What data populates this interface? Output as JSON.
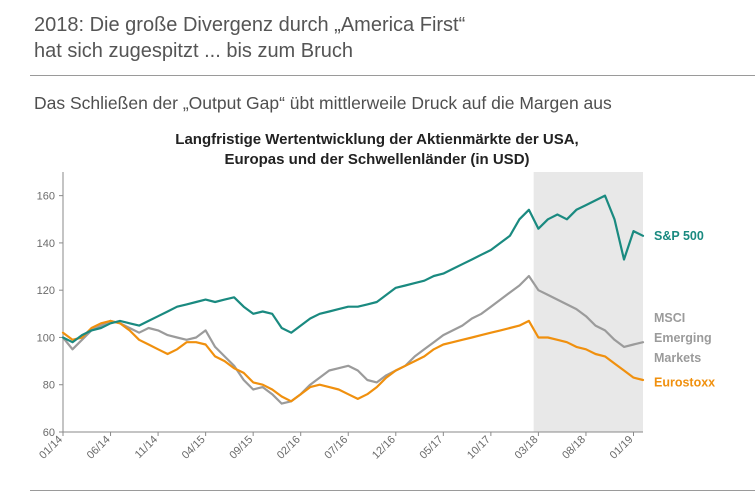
{
  "header": {
    "headline_line1": "2018: Die große Divergenz durch „America First“",
    "headline_line2": "hat sich zugespitzt ... bis zum Bruch",
    "subheadline": "Das Schließen der „Output Gap“ übt mittlerweile Druck auf die Margen aus"
  },
  "colors": {
    "sp500": "#1a8a80",
    "msci": "#9b9b9b",
    "eurostoxx": "#f0900e",
    "shade": "#e8e8e8",
    "axis": "#8a8a8a"
  },
  "chart_data": {
    "type": "line",
    "title": "Langfristige Wertentwicklung der Aktienmärkte der USA, Europas und der Schwellenländer (in USD)",
    "title_lines": [
      "Langfristige Wertentwicklung der Aktienmärkte der USA,",
      "Europas und der Schwellenländer (in USD)"
    ],
    "xlabel": "",
    "ylabel": "",
    "ylim": [
      60,
      170
    ],
    "yticks": [
      60,
      80,
      100,
      120,
      140,
      160
    ],
    "xlim": [
      0,
      61
    ],
    "x_tick_labels": [
      "01/14",
      "06/14",
      "11/14",
      "04/15",
      "09/15",
      "02/16",
      "07/16",
      "12/16",
      "05/17",
      "10/17",
      "03/18",
      "08/18",
      "01/19"
    ],
    "x_tick_positions": [
      0,
      5,
      10,
      15,
      20,
      25,
      30,
      35,
      40,
      45,
      50,
      55,
      60
    ],
    "shaded_region": [
      49.5,
      61
    ],
    "x": [
      0,
      1,
      2,
      3,
      4,
      5,
      6,
      7,
      8,
      9,
      10,
      11,
      12,
      13,
      14,
      15,
      16,
      17,
      18,
      19,
      20,
      21,
      22,
      23,
      24,
      25,
      26,
      27,
      28,
      29,
      30,
      31,
      32,
      33,
      34,
      35,
      36,
      37,
      38,
      39,
      40,
      41,
      42,
      43,
      44,
      45,
      46,
      47,
      48,
      49,
      50,
      51,
      52,
      53,
      54,
      55,
      56,
      57,
      58,
      59,
      60,
      61
    ],
    "series": [
      {
        "name": "S&P 500",
        "label_lines": [
          "S&P 500"
        ],
        "values": [
          100,
          98,
          101,
          103,
          104,
          106,
          107,
          106,
          105,
          107,
          109,
          111,
          113,
          114,
          115,
          116,
          115,
          116,
          117,
          113,
          110,
          111,
          110,
          104,
          102,
          105,
          108,
          110,
          111,
          112,
          113,
          113,
          114,
          115,
          118,
          121,
          122,
          123,
          124,
          126,
          127,
          129,
          131,
          133,
          135,
          137,
          140,
          143,
          150,
          154,
          146,
          150,
          152,
          150,
          154,
          156,
          158,
          160,
          150,
          133,
          145,
          143
        ]
      },
      {
        "name": "MSCI Emerging Markets",
        "label_lines": [
          "MSCI",
          "Emerging",
          "Markets"
        ],
        "values": [
          100,
          95,
          99,
          103,
          105,
          107,
          106,
          104,
          102,
          104,
          103,
          101,
          100,
          99,
          100,
          103,
          96,
          92,
          88,
          82,
          78,
          79,
          76,
          72,
          73,
          76,
          80,
          83,
          86,
          87,
          88,
          86,
          82,
          81,
          84,
          86,
          88,
          92,
          95,
          98,
          101,
          103,
          105,
          108,
          110,
          113,
          116,
          119,
          122,
          126,
          120,
          118,
          116,
          114,
          112,
          109,
          105,
          103,
          99,
          96,
          97,
          98
        ]
      },
      {
        "name": "Eurostoxx",
        "label_lines": [
          "Eurostoxx"
        ],
        "values": [
          102,
          99,
          100,
          104,
          106,
          107,
          106,
          103,
          99,
          97,
          95,
          93,
          95,
          98,
          98,
          97,
          92,
          90,
          87,
          85,
          81,
          80,
          78,
          75,
          73,
          76,
          79,
          80,
          79,
          78,
          76,
          74,
          76,
          79,
          83,
          86,
          88,
          90,
          92,
          95,
          97,
          98,
          99,
          100,
          101,
          102,
          103,
          104,
          105,
          107,
          100,
          100,
          99,
          98,
          96,
          95,
          93,
          92,
          89,
          86,
          83,
          82
        ]
      }
    ]
  }
}
